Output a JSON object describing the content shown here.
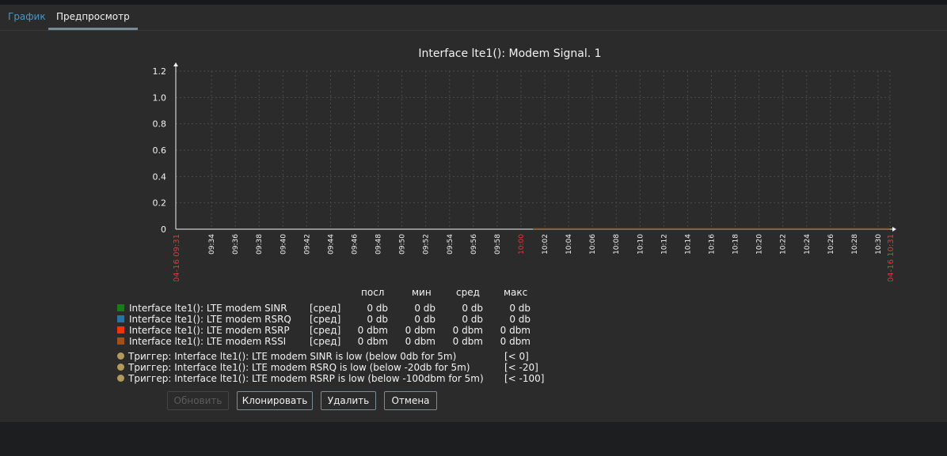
{
  "tabs": [
    {
      "label": "График"
    },
    {
      "label": "Предпросмотр"
    }
  ],
  "chart_data": {
    "type": "line",
    "title": "Interface lte1(): Modem Signal. 1",
    "yticks": [
      "1.2",
      "1.0",
      "0.8",
      "0.6",
      "0.4",
      "0.2",
      "0"
    ],
    "ylim": [
      0,
      1.2
    ],
    "grid": true,
    "x_start_label": "04-16 09:31",
    "x_end_label": "04-16 10:31",
    "xticks": [
      "09:34",
      "09:36",
      "09:38",
      "09:40",
      "09:42",
      "09:44",
      "09:46",
      "09:48",
      "09:50",
      "09:52",
      "09:54",
      "09:56",
      "09:58",
      "10:00",
      "10:02",
      "10:04",
      "10:06",
      "10:08",
      "10:10",
      "10:12",
      "10:14",
      "10:16",
      "10:18",
      "10:20",
      "10:22",
      "10:24",
      "10:26",
      "10:28",
      "10:30"
    ],
    "series": [
      {
        "name": "Interface lte1(): LTE modem RSSI",
        "x": [
          "10:01",
          "10:31"
        ],
        "values": [
          0,
          0
        ]
      }
    ]
  },
  "legend": {
    "headers": [
      "посл",
      "мин",
      "сред",
      "макс"
    ],
    "items": [
      {
        "name": "Interface lte1(): LTE modem SINR",
        "color": "#1a7b1a",
        "func": "[сред]",
        "last": "0 db",
        "min": "0 db",
        "avg": "0 db",
        "max": "0 db"
      },
      {
        "name": "Interface lte1(): LTE modem RSRQ",
        "color": "#2774a4",
        "func": "[сред]",
        "last": "0 db",
        "min": "0 db",
        "avg": "0 db",
        "max": "0 db"
      },
      {
        "name": "Interface lte1(): LTE modem RSRP",
        "color": "#f63100",
        "func": "[сред]",
        "last": "0 dbm",
        "min": "0 dbm",
        "avg": "0 dbm",
        "max": "0 dbm"
      },
      {
        "name": "Interface lte1(): LTE modem RSSI",
        "color": "#a54f10",
        "func": "[сред]",
        "last": "0 dbm",
        "min": "0 dbm",
        "avg": "0 dbm",
        "max": "0 dbm"
      }
    ],
    "triggers": [
      {
        "name": "Триггер: Interface lte1(): LTE modem SINR is low (below 0db for 5m)",
        "value": "[< 0]"
      },
      {
        "name": "Триггер: Interface lte1(): LTE modem RSRQ is low (below -20db for 5m)",
        "value": "[< -20]"
      },
      {
        "name": "Триггер: Interface lte1(): LTE modem RSRP is low (below -100dbm for 5m)",
        "value": "[< -100]"
      }
    ]
  },
  "buttons": {
    "update": "Обновить",
    "clone": "Клонировать",
    "delete": "Удалить",
    "cancel": "Отмена"
  },
  "colors": {
    "background": "#2b2b2b",
    "grid": "#4a4a4a",
    "axis": "#f2f2f2",
    "red_label": "#e33734",
    "tab_link": "#4796c4",
    "line": "#a54f10"
  }
}
